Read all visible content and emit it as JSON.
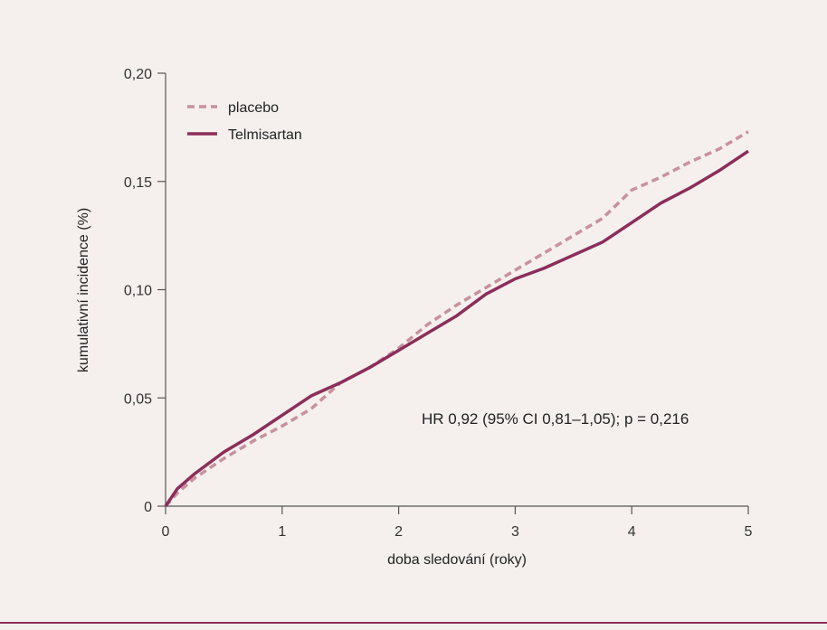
{
  "colors": {
    "background": "#f5f0ee",
    "placebo": "#c8919e",
    "telmisartan": "#8b2e5a",
    "axis": "#555555",
    "rule": "#8b2e5a"
  },
  "chart_data": {
    "type": "line",
    "xlabel": "doba sledování (roky)",
    "ylabel": "kumulativní incidence (%)",
    "xlim": [
      0,
      5
    ],
    "ylim": [
      0,
      0.2
    ],
    "x_ticks": [
      0,
      1,
      2,
      3,
      4,
      5
    ],
    "x_tick_labels": [
      "0",
      "1",
      "2",
      "3",
      "4",
      "5"
    ],
    "y_ticks": [
      0,
      0.05,
      0.1,
      0.15,
      0.2
    ],
    "y_tick_labels": [
      "0",
      "0,05",
      "0,10",
      "0,15",
      "0,20"
    ],
    "grid": false,
    "legend_position": "top-left",
    "annotation": "HR 0,92 (95% CI 0,81–1,05); p = 0,216",
    "series": [
      {
        "name": "placebo",
        "style": "dashed",
        "x": [
          0,
          0.1,
          0.25,
          0.5,
          0.75,
          1.0,
          1.25,
          1.5,
          1.75,
          2.0,
          2.25,
          2.5,
          2.75,
          3.0,
          3.25,
          3.5,
          3.75,
          4.0,
          4.25,
          4.5,
          4.75,
          5.0
        ],
        "y": [
          0,
          0.006,
          0.013,
          0.022,
          0.03,
          0.037,
          0.045,
          0.057,
          0.064,
          0.073,
          0.084,
          0.093,
          0.101,
          0.109,
          0.117,
          0.125,
          0.133,
          0.146,
          0.152,
          0.159,
          0.165,
          0.173
        ]
      },
      {
        "name": "Telmisartan",
        "style": "solid",
        "x": [
          0,
          0.1,
          0.25,
          0.5,
          0.75,
          1.0,
          1.25,
          1.5,
          1.75,
          2.0,
          2.25,
          2.5,
          2.75,
          3.0,
          3.25,
          3.5,
          3.75,
          4.0,
          4.25,
          4.5,
          4.75,
          5.0
        ],
        "y": [
          0,
          0.008,
          0.015,
          0.025,
          0.033,
          0.042,
          0.051,
          0.057,
          0.064,
          0.072,
          0.08,
          0.088,
          0.098,
          0.105,
          0.11,
          0.116,
          0.122,
          0.131,
          0.14,
          0.147,
          0.155,
          0.164
        ]
      }
    ]
  }
}
